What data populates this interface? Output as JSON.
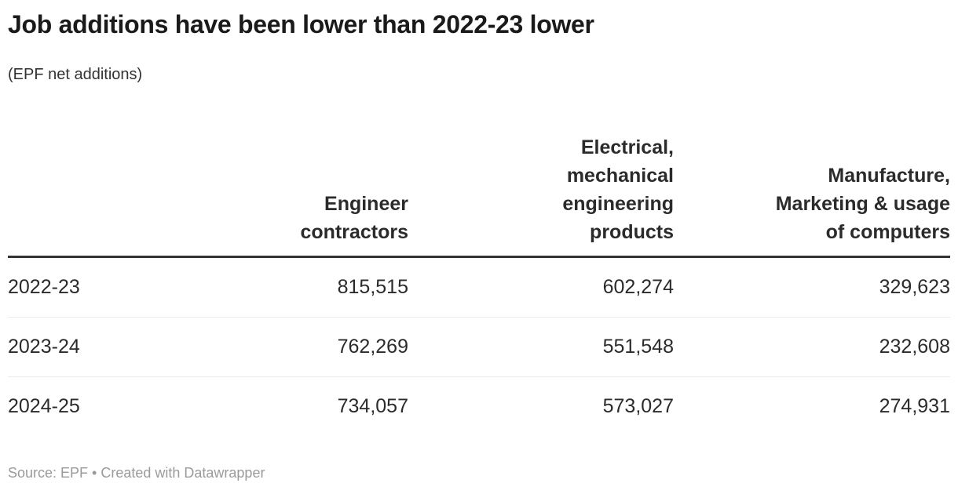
{
  "header": {
    "title": "Job additions have been lower than 2022-23 lower",
    "subtitle": "(EPF net additions)"
  },
  "table": {
    "columns": [
      {
        "label": ""
      },
      {
        "label": [
          "Engineer",
          "contractors"
        ]
      },
      {
        "label": [
          "Electrical,",
          "mechanical",
          "engineering",
          "products"
        ]
      },
      {
        "label": [
          "Manufacture,",
          "Marketing & usage",
          "of computers"
        ]
      }
    ],
    "rows": [
      {
        "label": "2022-23",
        "values": [
          "815,515",
          "602,274",
          "329,623"
        ]
      },
      {
        "label": "2023-24",
        "values": [
          "762,269",
          "551,548",
          "232,608"
        ]
      },
      {
        "label": "2024-25",
        "values": [
          "734,057",
          "573,027",
          "274,931"
        ]
      }
    ]
  },
  "footer": {
    "text": "Source: EPF • Created with Datawrapper"
  },
  "colors": {
    "title_text": "#1a1a1a",
    "body_text": "#2b2b2b",
    "header_rule": "#333333",
    "row_divider": "#ebebeb",
    "footer_text": "#9a9a9a",
    "background": "#ffffff"
  },
  "chart_data": {
    "type": "table",
    "title": "Job additions have been lower than 2022-23 lower",
    "subtitle": "(EPF net additions)",
    "categories": [
      "2022-23",
      "2023-24",
      "2024-25"
    ],
    "series": [
      {
        "name": "Engineer contractors",
        "values": [
          815515,
          762269,
          734057
        ]
      },
      {
        "name": "Electrical, mechanical engineering products",
        "values": [
          602274,
          551548,
          573027
        ]
      },
      {
        "name": "Manufacture, Marketing & usage of computers",
        "values": [
          329623,
          232608,
          274931
        ]
      }
    ],
    "source": "Source: EPF • Created with Datawrapper",
    "layout_hints": {
      "value_alignment": "right",
      "row_labels_alignment": "left",
      "header_rule": "thick",
      "grid": "horizontal-row-dividers-only"
    }
  }
}
